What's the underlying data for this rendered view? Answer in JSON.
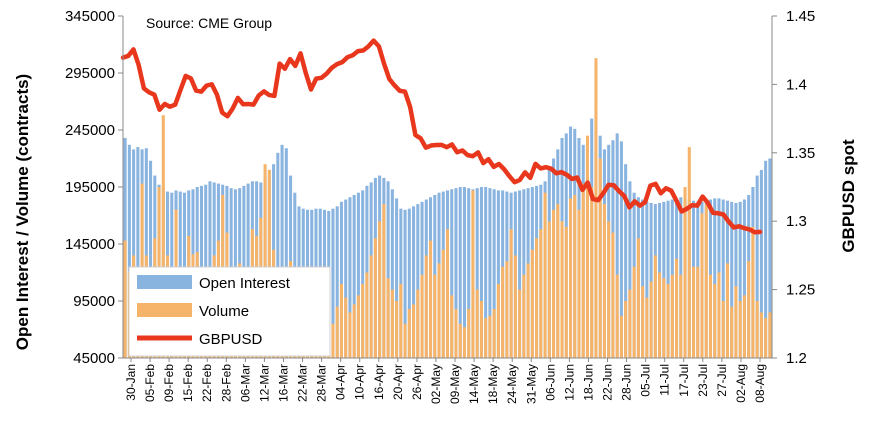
{
  "chart_data": {
    "type": "bar",
    "annotation": "Source: CME Group",
    "ylabel": "Open Interest / Volume (contracts)",
    "y2label": "GBPUSD spot",
    "ylim": [
      45000,
      345000
    ],
    "y2lim": [
      1.2,
      1.45
    ],
    "yticks": [
      "345000",
      "295000",
      "245000",
      "195000",
      "145000",
      "95000",
      "45000"
    ],
    "y2ticks": [
      "1.45",
      "1.4",
      "1.35",
      "1.3",
      "1.25",
      "1.2"
    ],
    "x_tick_labels": [
      "30-Jan",
      "05-Feb",
      "09-Feb",
      "15-Feb",
      "22-Feb",
      "28-Feb",
      "06-Mar",
      "12-Mar",
      "16-Mar",
      "22-Mar",
      "28-Mar",
      "04-Apr",
      "10-Apr",
      "16-Apr",
      "20-Apr",
      "26-Apr",
      "02-May",
      "09-May",
      "14-May",
      "18-May",
      "24-May",
      "31-May",
      "06-Jun",
      "12-Jun",
      "18-Jun",
      "22-Jun",
      "28-Jun",
      "05-Jul",
      "11-Jul",
      "17-Jul",
      "23-Jul",
      "27-Jul",
      "02-Aug",
      "08-Aug"
    ],
    "legend_position": "bottom-left",
    "grid": false,
    "series": [
      {
        "name": "Open Interest",
        "type": "bar",
        "color": "#8ab4e0",
        "values": [
          238000,
          232000,
          228000,
          230000,
          228000,
          229000,
          218000,
          205000,
          197000,
          195000,
          191000,
          190000,
          192000,
          191000,
          190000,
          192000,
          193000,
          195000,
          196000,
          197000,
          200000,
          199000,
          198000,
          197000,
          196000,
          194000,
          193000,
          194000,
          196000,
          198000,
          200000,
          200000,
          199000,
          205000,
          210000,
          215000,
          225000,
          232000,
          229000,
          205000,
          190000,
          178000,
          176000,
          175000,
          175000,
          176000,
          176000,
          175000,
          174000,
          176000,
          178000,
          182000,
          184000,
          186000,
          188000,
          190000,
          192000,
          196000,
          199000,
          203000,
          205000,
          203000,
          200000,
          193000,
          185000,
          176000,
          175000,
          176000,
          178000,
          180000,
          182000,
          184000,
          186000,
          188000,
          190000,
          191000,
          192000,
          193000,
          194000,
          195000,
          195000,
          194000,
          193000,
          194000,
          195000,
          195000,
          194000,
          193000,
          192000,
          192000,
          191000,
          190000,
          191000,
          192000,
          193000,
          194000,
          195000,
          196000,
          197000,
          200000,
          210000,
          220000,
          228000,
          238000,
          242000,
          248000,
          246000,
          238000,
          232000,
          235000,
          255000,
          268000,
          240000,
          228000,
          232000,
          236000,
          242000,
          235000,
          215000,
          200000,
          190000,
          186000,
          184000,
          182000,
          181000,
          180000,
          181000,
          182000,
          183000,
          184000,
          185000,
          186000,
          185000,
          184000,
          183000,
          182000,
          182000,
          183000,
          184000,
          185000,
          185000,
          184000,
          183000,
          182000,
          181000,
          182000,
          184000,
          188000,
          195000,
          205000,
          210000,
          218000,
          220000
        ]
      },
      {
        "name": "Volume",
        "type": "bar",
        "color": "#f5b46a",
        "values": [
          148000,
          120000,
          135000,
          105000,
          198000,
          135000,
          112000,
          150000,
          195000,
          258000,
          135000,
          125000,
          175000,
          118000,
          112000,
          152000,
          136000,
          138000,
          112000,
          118000,
          118000,
          135000,
          148000,
          188000,
          155000,
          125000,
          95000,
          128000,
          125000,
          118000,
          158000,
          152000,
          168000,
          215000,
          210000,
          140000,
          95000,
          80000,
          118000,
          130000,
          110000,
          72000,
          78000,
          85000,
          65000,
          72000,
          60000,
          62000,
          85000,
          75000,
          90000,
          110000,
          98000,
          85000,
          92000,
          100000,
          110000,
          120000,
          135000,
          150000,
          165000,
          180000,
          115000,
          105000,
          95000,
          110000,
          75000,
          88000,
          92000,
          105000,
          118000,
          135000,
          148000,
          118000,
          128000,
          140000,
          158000,
          100000,
          88000,
          75000,
          72000,
          88000,
          192000,
          105000,
          95000,
          80000,
          82000,
          88000,
          110000,
          125000,
          130000,
          158000,
          135000,
          105000,
          118000,
          128000,
          140000,
          150000,
          158000,
          190000,
          165000,
          175000,
          180000,
          165000,
          160000,
          185000,
          188000,
          175000,
          198000,
          240000,
          195000,
          308000,
          220000,
          180000,
          165000,
          155000,
          118000,
          82000,
          95000,
          105000,
          125000,
          150000,
          108000,
          98000,
          112000,
          135000,
          120000,
          115000,
          110000,
          118000,
          132000,
          118000,
          195000,
          230000,
          125000,
          125000,
          172000,
          180000,
          118000,
          110000,
          120000,
          95000,
          128000,
          90000,
          108000,
          95000,
          100000,
          130000,
          160000,
          95000,
          85000,
          80000,
          85000
        ]
      },
      {
        "name": "GBPUSD",
        "type": "line",
        "color": "#e8371c",
        "values": [
          1.4196,
          1.4208,
          1.4256,
          1.4142,
          1.3971,
          1.3942,
          1.3925,
          1.3815,
          1.3857,
          1.3837,
          1.3852,
          1.3958,
          1.4062,
          1.4044,
          1.3955,
          1.3947,
          1.3991,
          1.4001,
          1.3924,
          1.3794,
          1.3767,
          1.3823,
          1.3901,
          1.3855,
          1.3857,
          1.3852,
          1.3919,
          1.3949,
          1.3922,
          1.3916,
          1.4152,
          1.4114,
          1.4185,
          1.4135,
          1.4227,
          1.4084,
          1.3963,
          1.4042,
          1.4048,
          1.4079,
          1.4122,
          1.4148,
          1.4163,
          1.4199,
          1.4213,
          1.4243,
          1.4248,
          1.4278,
          1.432,
          1.4279,
          1.4151,
          1.404,
          1.3993,
          1.3953,
          1.3947,
          1.3834,
          1.363,
          1.3606,
          1.3538,
          1.3553,
          1.3557,
          1.3558,
          1.3541,
          1.3561,
          1.3504,
          1.3517,
          1.3483,
          1.3475,
          1.3503,
          1.3425,
          1.3453,
          1.3397,
          1.3418,
          1.338,
          1.3329,
          1.3285,
          1.3302,
          1.3357,
          1.3317,
          1.3419,
          1.3386,
          1.3395,
          1.3384,
          1.335,
          1.3359,
          1.3339,
          1.3309,
          1.3319,
          1.3229,
          1.3282,
          1.3162,
          1.3154,
          1.3206,
          1.3266,
          1.3263,
          1.322,
          1.3184,
          1.3101,
          1.3145,
          1.3114,
          1.3139,
          1.326,
          1.3273,
          1.3204,
          1.3241,
          1.3223,
          1.315,
          1.3071,
          1.3091,
          1.3117,
          1.3114,
          1.318,
          1.3134,
          1.3061,
          1.3058,
          1.3049,
          1.2997,
          1.2954,
          1.2963,
          1.2949,
          1.294,
          1.2919,
          1.2922
        ]
      }
    ]
  }
}
